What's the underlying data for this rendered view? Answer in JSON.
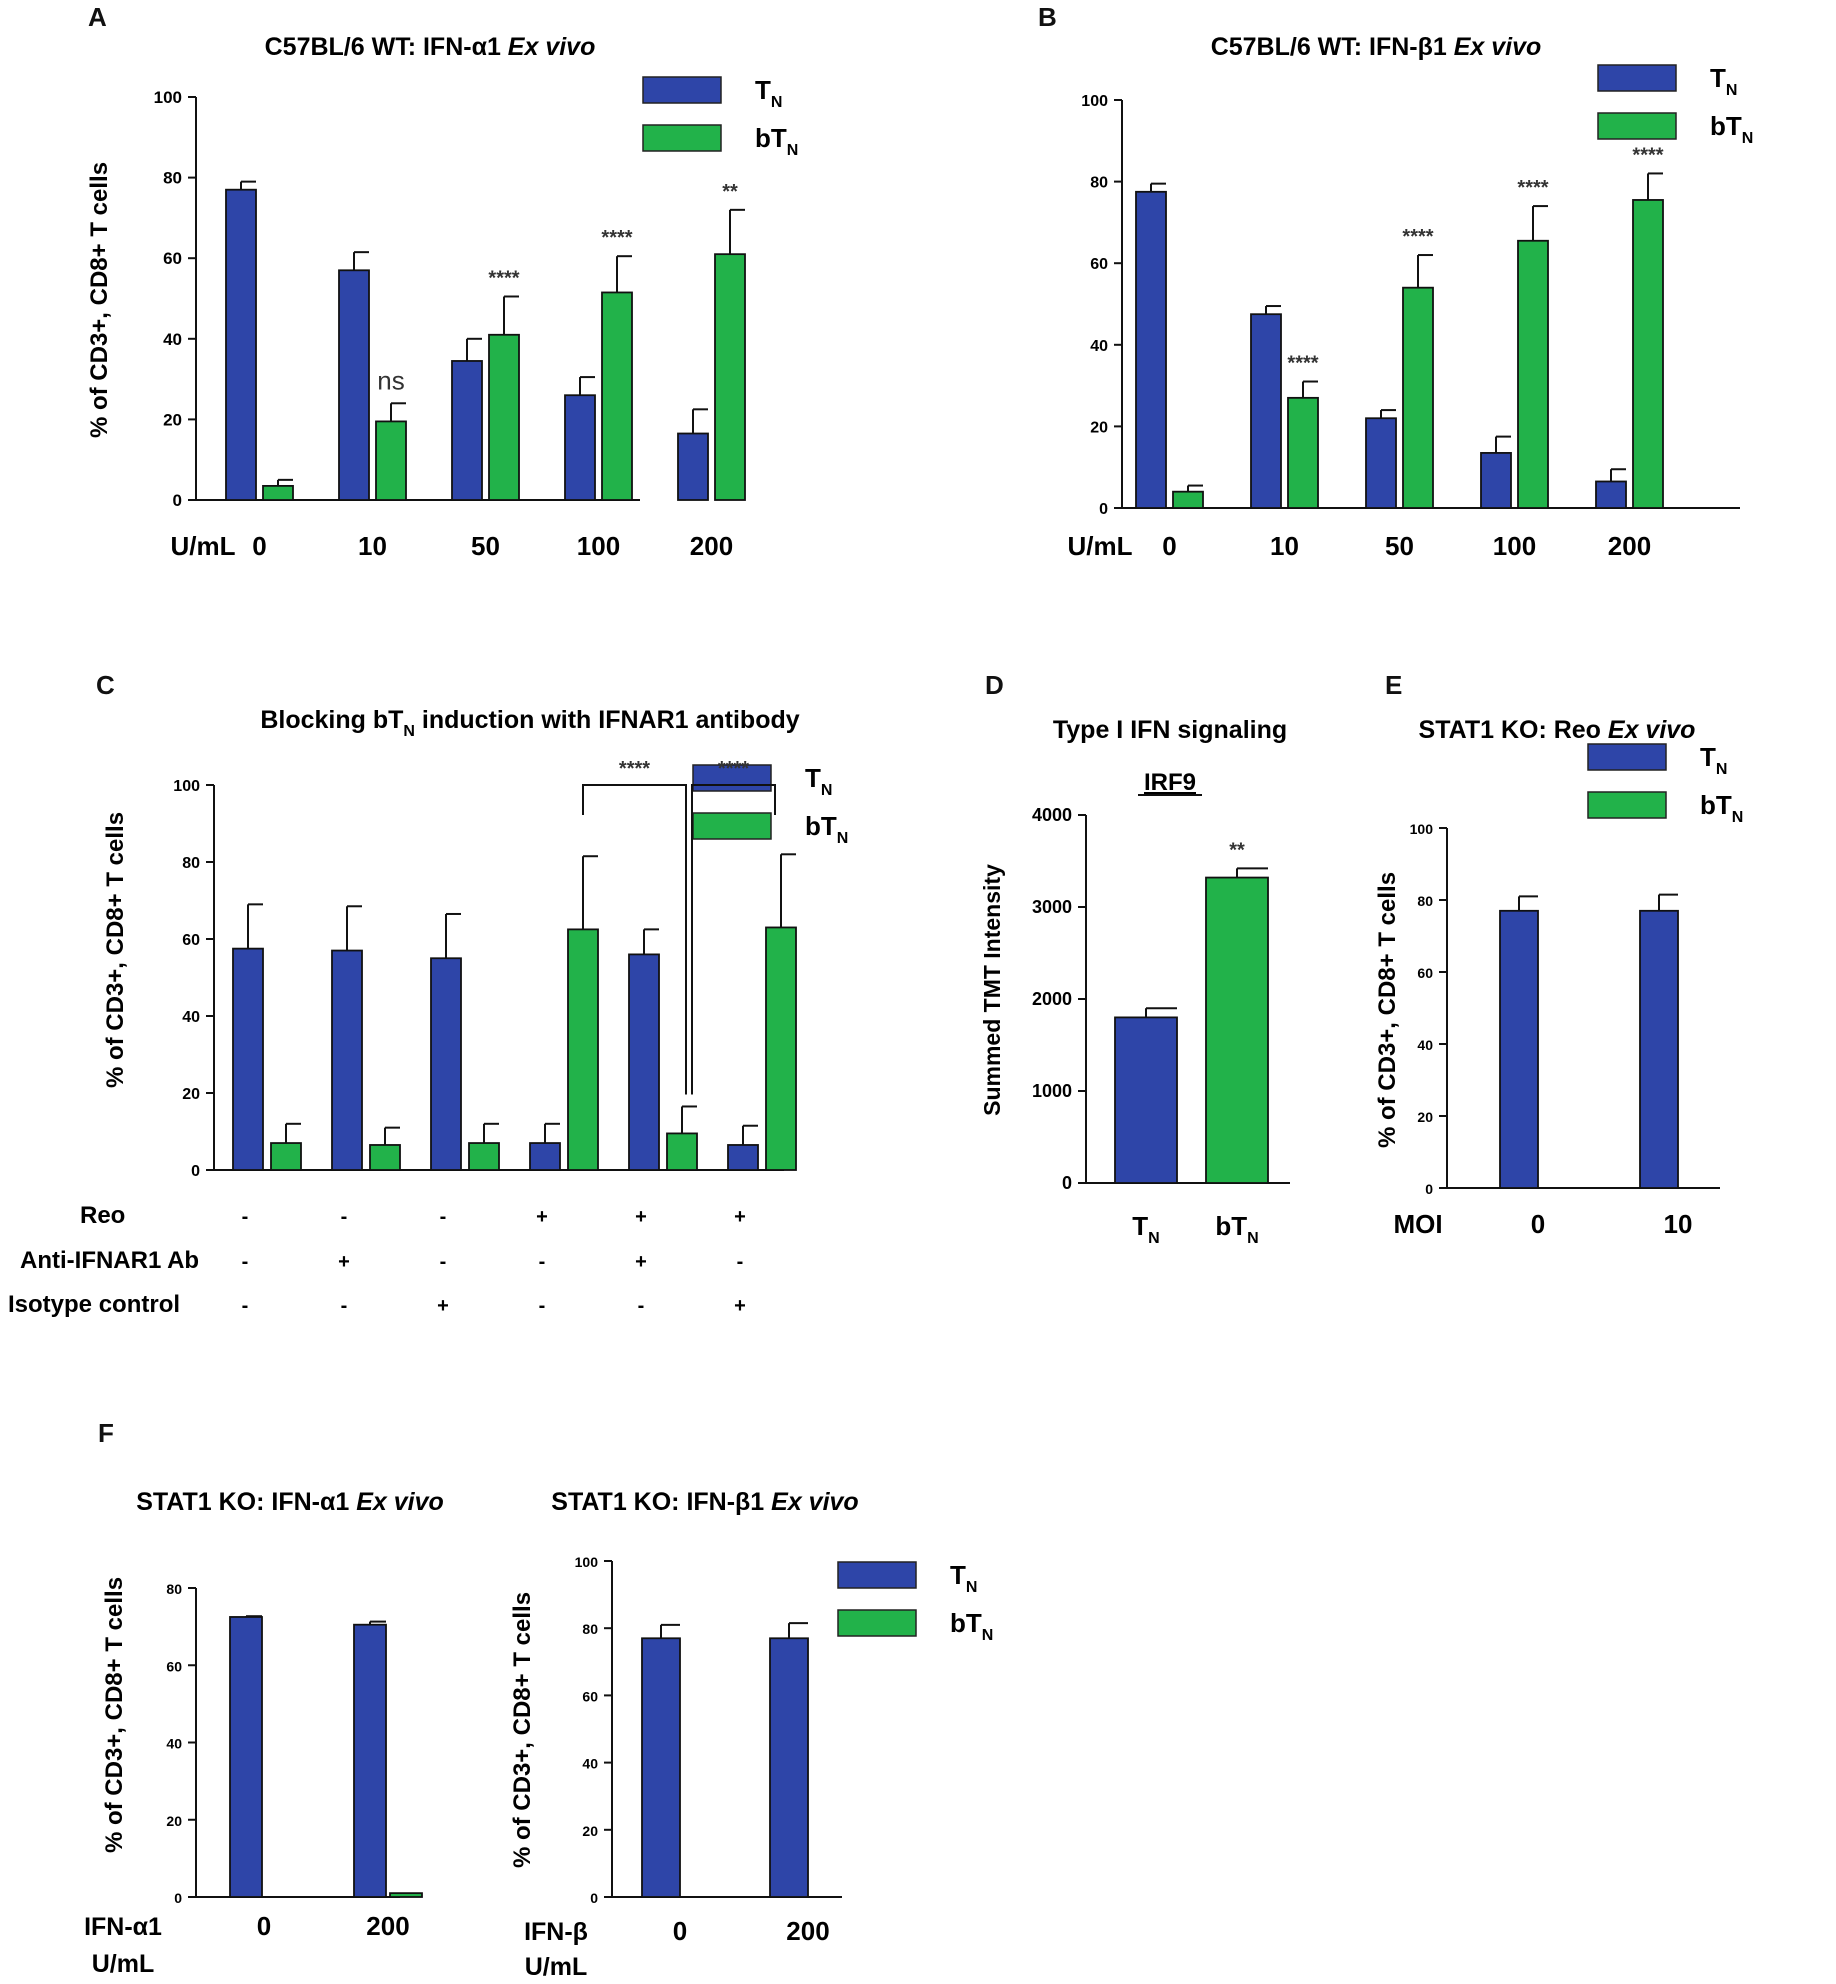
{
  "colors": {
    "TN": "#2e45a8",
    "bTN": "#22b24a",
    "axis": "#111111"
  },
  "legend": {
    "tn": "T",
    "btn": "bT",
    "sub": "N"
  },
  "panel_labels": [
    "A",
    "B",
    "C",
    "D",
    "E",
    "F"
  ],
  "chart_data": [
    {
      "id": "A",
      "type": "bar",
      "title": "C57BL/6 WT: IFN-α1 ",
      "title_italic": "Ex vivo",
      "ylabel": "% of CD3+, CD8+ T cells",
      "xlabel": "U/mL",
      "ylim": [
        0,
        100
      ],
      "yticks": [
        0,
        20,
        40,
        60,
        80,
        100
      ],
      "categories": [
        "0",
        "10",
        "50",
        "100",
        "200"
      ],
      "series": [
        {
          "name": "TN",
          "values": [
            77,
            57,
            34.5,
            26,
            16.5
          ],
          "errors": [
            2,
            4.5,
            5.5,
            4.5,
            6
          ]
        },
        {
          "name": "bTN",
          "values": [
            3.5,
            19.5,
            41,
            51.5,
            61
          ],
          "errors": [
            1.5,
            4.5,
            9.5,
            9,
            11
          ]
        }
      ],
      "annotations": [
        "",
        "ns",
        "****",
        "****",
        "**"
      ]
    },
    {
      "id": "B",
      "type": "bar",
      "title": "C57BL/6 WT: IFN-β1 ",
      "title_italic": "Ex vivo",
      "ylabel": "",
      "xlabel": "U/mL",
      "ylim": [
        0,
        100
      ],
      "yticks": [
        0,
        20,
        40,
        60,
        80,
        100
      ],
      "categories": [
        "0",
        "10",
        "50",
        "100",
        "200"
      ],
      "series": [
        {
          "name": "TN",
          "values": [
            77.5,
            47.5,
            22,
            13.5,
            6.5
          ],
          "errors": [
            2,
            2,
            2,
            4,
            3
          ]
        },
        {
          "name": "bTN",
          "values": [
            4,
            27,
            54,
            65.5,
            75.5
          ],
          "errors": [
            1.5,
            4,
            8,
            8.5,
            6.5
          ]
        }
      ],
      "annotations": [
        "",
        "****",
        "****",
        "****",
        "****"
      ]
    },
    {
      "id": "C",
      "type": "bar",
      "title_pre": "Blocking  bT",
      "title_sub": "N",
      "title_post": " induction with IFNAR1 antibody",
      "ylabel": "% of CD3+, CD8+ T cells",
      "ylim": [
        0,
        100
      ],
      "yticks": [
        0,
        20,
        40,
        60,
        80,
        100
      ],
      "conditions": [
        {
          "label": "Reo",
          "values": [
            "-",
            "-",
            "-",
            "+",
            "+",
            "+"
          ]
        },
        {
          "label": "Anti-IFNAR1 Ab",
          "values": [
            "-",
            "+",
            "-",
            "-",
            "+",
            "-"
          ]
        },
        {
          "label": "Isotype control",
          "values": [
            "-",
            "-",
            "+",
            "-",
            "-",
            "+"
          ]
        }
      ],
      "series": [
        {
          "name": "TN",
          "values": [
            57.5,
            57,
            55,
            7,
            56,
            6.5
          ],
          "errors": [
            11.5,
            11.5,
            11.5,
            5,
            6.5,
            5
          ]
        },
        {
          "name": "bTN",
          "values": [
            7,
            6.5,
            7,
            62.5,
            9.5,
            63
          ],
          "errors": [
            5,
            4.5,
            5,
            19,
            7,
            19
          ]
        }
      ],
      "comparisons": [
        {
          "from_group": 3,
          "to_group": 4,
          "label": "****"
        },
        {
          "from_group": 4,
          "to_group": 5,
          "label": "****"
        }
      ]
    },
    {
      "id": "D",
      "type": "bar",
      "title": "Type I IFN  signaling",
      "subtitle": "IRF9",
      "ylabel": "Summed TMT Intensity",
      "ylim": [
        0,
        4000
      ],
      "yticks": [
        0,
        1000,
        2000,
        3000,
        4000
      ],
      "categories": [
        "TN",
        "bTN"
      ],
      "values": [
        1800,
        3320
      ],
      "errors": [
        100,
        100
      ],
      "annotation": "**"
    },
    {
      "id": "E",
      "type": "bar",
      "title": "STAT1 KO: Reo ",
      "title_italic": "Ex  vivo",
      "ylabel": "% of CD3+,  CD8+ T cells",
      "xlabel": "MOI",
      "ylim": [
        0,
        100
      ],
      "yticks": [
        0,
        20,
        40,
        60,
        80,
        100
      ],
      "categories": [
        "0",
        "10"
      ],
      "series": [
        {
          "name": "TN",
          "values": [
            77,
            77
          ],
          "errors": [
            4,
            4.5
          ]
        },
        {
          "name": "bTN",
          "values": [
            0,
            0
          ],
          "errors": [
            0,
            0
          ]
        }
      ]
    },
    {
      "id": "F1",
      "type": "bar",
      "title": "STAT1 KO: IFN-α1 ",
      "title_italic": "Ex vivo",
      "ylabel": "% of CD3+,  CD8+ T cells",
      "xlabel_lines": [
        "IFN-α1",
        "U/mL"
      ],
      "ylim": [
        0,
        80
      ],
      "yticks": [
        0,
        20,
        40,
        60,
        80
      ],
      "categories": [
        "0",
        "200"
      ],
      "series": [
        {
          "name": "TN",
          "values": [
            72.5,
            70.5
          ],
          "errors": [
            0.2,
            0.8
          ]
        },
        {
          "name": "bTN",
          "values": [
            0,
            1
          ],
          "errors": [
            0,
            0
          ]
        }
      ]
    },
    {
      "id": "F2",
      "type": "bar",
      "title": "STAT1 KO: IFN-β1 ",
      "title_italic": "Ex vivo",
      "ylabel": "% of CD3+, CD8+ T cells",
      "xlabel_lines": [
        "IFN-β",
        "U/mL"
      ],
      "ylim": [
        0,
        100
      ],
      "yticks": [
        0,
        20,
        40,
        60,
        80,
        100
      ],
      "categories": [
        "0",
        "200"
      ],
      "series": [
        {
          "name": "TN",
          "values": [
            77,
            77
          ],
          "errors": [
            4,
            4.5
          ]
        },
        {
          "name": "bTN",
          "values": [
            0,
            0
          ],
          "errors": [
            0,
            0
          ]
        }
      ]
    }
  ]
}
